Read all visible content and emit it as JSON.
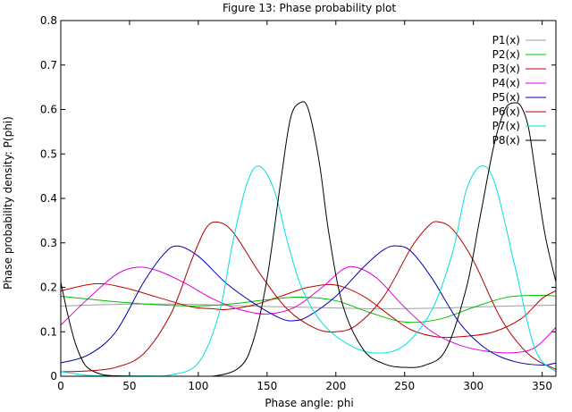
{
  "chart_data": {
    "type": "line",
    "title": "Figure 13:  Phase probability plot",
    "xlabel": "Phase angle: phi",
    "ylabel": "Phase probability density: P(phi)",
    "xlim": [
      0,
      360
    ],
    "ylim": [
      0,
      0.8
    ],
    "xticks": [
      0,
      50,
      100,
      150,
      200,
      250,
      300,
      350
    ],
    "yticks": [
      0,
      0.1,
      0.2,
      0.3,
      0.4,
      0.5,
      0.6,
      0.7,
      0.8
    ],
    "xtick_labels": [
      "0",
      "50",
      "100",
      "150",
      "200",
      "250",
      "300",
      "350"
    ],
    "ytick_labels": [
      "0",
      "0.1",
      "0.2",
      "0.3",
      "0.4",
      "0.5",
      "0.6",
      "0.7",
      "0.8"
    ],
    "grid": false,
    "legend_position": "top-right",
    "series": [
      {
        "name": "P1(x)",
        "color": "#a0a0a0",
        "x": [
          0,
          45,
          90,
          135,
          180,
          225,
          270,
          315,
          360
        ],
        "y": [
          0.158,
          0.162,
          0.162,
          0.158,
          0.155,
          0.152,
          0.153,
          0.157,
          0.16
        ]
      },
      {
        "name": "P2(x)",
        "color": "#00c000",
        "x": [
          0,
          25,
          50,
          75,
          100,
          125,
          150,
          175,
          200,
          225,
          250,
          275,
          300,
          325,
          350,
          360
        ],
        "y": [
          0.18,
          0.172,
          0.165,
          0.16,
          0.158,
          0.163,
          0.172,
          0.178,
          0.17,
          0.143,
          0.122,
          0.128,
          0.155,
          0.178,
          0.182,
          0.18
        ]
      },
      {
        "name": "P3(x)",
        "color": "#c00000",
        "x": [
          0,
          25,
          45,
          70,
          95,
          110,
          120,
          140,
          160,
          180,
          200,
          220,
          240,
          255,
          275,
          295,
          315,
          335,
          350,
          360
        ],
        "y": [
          0.192,
          0.208,
          0.2,
          0.178,
          0.156,
          0.152,
          0.15,
          0.16,
          0.18,
          0.2,
          0.205,
          0.18,
          0.135,
          0.104,
          0.088,
          0.09,
          0.1,
          0.13,
          0.175,
          0.192
        ]
      },
      {
        "name": "P4(x)",
        "color": "#e000e0",
        "x": [
          0,
          20,
          40,
          55,
          70,
          90,
          110,
          130,
          150,
          170,
          190,
          205,
          215,
          230,
          250,
          270,
          290,
          310,
          330,
          345,
          360
        ],
        "y": [
          0.115,
          0.175,
          0.228,
          0.245,
          0.238,
          0.21,
          0.175,
          0.15,
          0.14,
          0.155,
          0.2,
          0.24,
          0.245,
          0.22,
          0.155,
          0.1,
          0.07,
          0.056,
          0.053,
          0.065,
          0.11
        ]
      },
      {
        "name": "P5(x)",
        "color": "#0000b0",
        "x": [
          0,
          20,
          40,
          60,
          75,
          85,
          100,
          120,
          140,
          160,
          170,
          180,
          200,
          220,
          235,
          245,
          255,
          270,
          290,
          310,
          330,
          350,
          360
        ],
        "y": [
          0.03,
          0.048,
          0.1,
          0.21,
          0.275,
          0.293,
          0.27,
          0.21,
          0.165,
          0.13,
          0.125,
          0.135,
          0.18,
          0.245,
          0.285,
          0.293,
          0.28,
          0.22,
          0.12,
          0.06,
          0.033,
          0.025,
          0.03
        ]
      },
      {
        "name": "P6(x)",
        "color": "#b00000",
        "x": [
          0,
          20,
          40,
          60,
          80,
          95,
          105,
          113,
          125,
          145,
          165,
          185,
          200,
          215,
          235,
          255,
          268,
          275,
          285,
          300,
          320,
          340,
          360
        ],
        "y": [
          0.01,
          0.012,
          0.02,
          0.05,
          0.14,
          0.26,
          0.33,
          0.347,
          0.325,
          0.23,
          0.15,
          0.108,
          0.1,
          0.115,
          0.18,
          0.29,
          0.34,
          0.347,
          0.33,
          0.26,
          0.13,
          0.05,
          0.015
        ]
      },
      {
        "name": "P7(x)",
        "color": "#00e0e0",
        "x": [
          0,
          10,
          20,
          40,
          60,
          80,
          100,
          115,
          125,
          135,
          144,
          155,
          165,
          175,
          190,
          210,
          230,
          250,
          270,
          285,
          295,
          306,
          316,
          330,
          345,
          360
        ],
        "y": [
          0.01,
          0.006,
          0.002,
          0.001,
          0.001,
          0.003,
          0.03,
          0.14,
          0.3,
          0.43,
          0.473,
          0.42,
          0.3,
          0.2,
          0.12,
          0.07,
          0.052,
          0.07,
          0.15,
          0.28,
          0.42,
          0.473,
          0.43,
          0.25,
          0.06,
          0.01
        ]
      },
      {
        "name": "P8(x)",
        "color": "#000000",
        "x": [
          0,
          5,
          10,
          15,
          20,
          30,
          40,
          60,
          80,
          110,
          130,
          140,
          150,
          160,
          167,
          174,
          180,
          188,
          195,
          205,
          220,
          235,
          250,
          265,
          280,
          295,
          305,
          315,
          323,
          330,
          335,
          340,
          345,
          352,
          360
        ],
        "y": [
          0.212,
          0.14,
          0.08,
          0.04,
          0.018,
          0.004,
          0.001,
          0.0,
          0.0,
          0.0,
          0.02,
          0.08,
          0.22,
          0.44,
          0.58,
          0.615,
          0.6,
          0.48,
          0.32,
          0.16,
          0.06,
          0.028,
          0.02,
          0.025,
          0.06,
          0.2,
          0.36,
          0.52,
          0.6,
          0.615,
          0.605,
          0.56,
          0.46,
          0.32,
          0.212
        ]
      }
    ]
  }
}
